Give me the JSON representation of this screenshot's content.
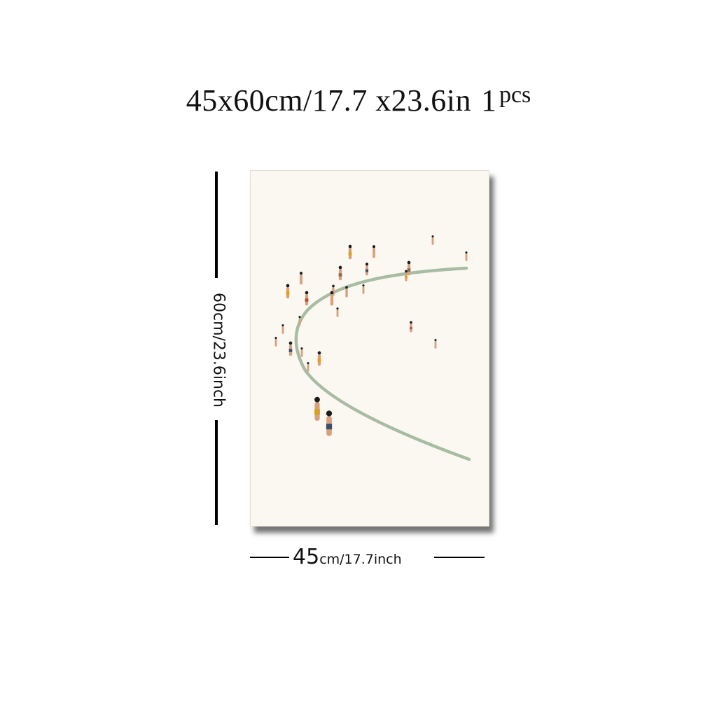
{
  "title": {
    "size_text": "45x60cm/17.7 x23.6in",
    "quantity_number": "1",
    "quantity_unit": "pcs"
  },
  "dimensions": {
    "height_label": "60cm/23.6inch",
    "width_number": "45",
    "width_unit": "cm/17.7inch"
  },
  "artwork": {
    "shoreline_color": "#a8bca4",
    "background_color": "#fbf8f2",
    "figure_colors": {
      "skin": "#d9a07c",
      "hair": "#1c1c1c",
      "yellow": "#d9a11c",
      "red": "#c0452c",
      "navy": "#3f4d6c",
      "brown": "#8a6a4e"
    }
  }
}
